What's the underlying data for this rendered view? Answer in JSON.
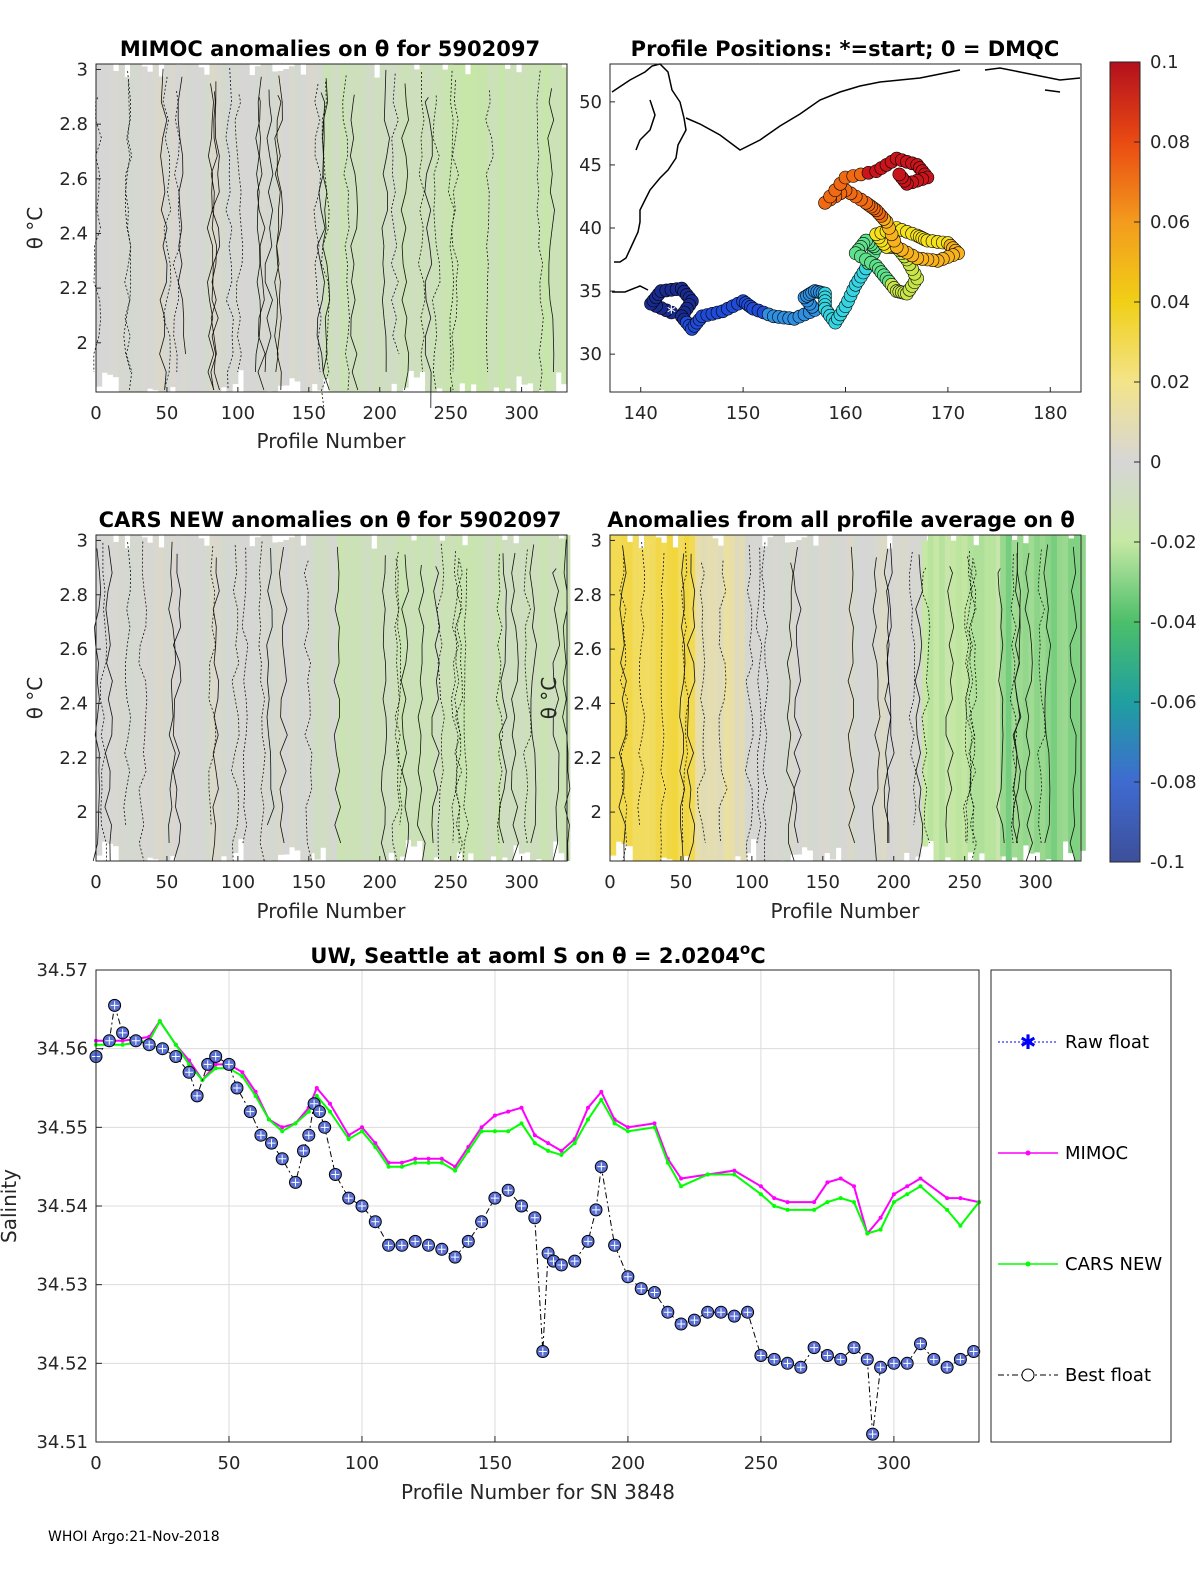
{
  "footer": "WHOI Argo:21-Nov-2018",
  "colors": {
    "raw": "#0000ff",
    "mimoc": "#ff00ff",
    "cars": "#00ff00",
    "best": "#000000",
    "marker_fill": "#5a6fd6",
    "land": "#000000"
  },
  "chart_data": [
    {
      "id": "mimoc",
      "type": "heatmap",
      "title": "MIMOC anomalies on θ  for 5902097",
      "xlabel": "Profile Number",
      "ylabel": "θ °C",
      "xlim": [
        0,
        332
      ],
      "ylim": [
        1.82,
        3.02
      ],
      "xticks": [
        "0",
        "50",
        "100",
        "150",
        "200",
        "250",
        "300"
      ],
      "yticks": [
        "2",
        "2.2",
        "2.4",
        "2.6",
        "2.8",
        "3"
      ],
      "segments": [
        {
          "from": 0,
          "to": 160,
          "value": 0.0
        },
        {
          "from": 160,
          "to": 240,
          "value": -0.01
        },
        {
          "from": 240,
          "to": 332,
          "value": -0.015
        }
      ]
    },
    {
      "id": "positions",
      "type": "scatter",
      "title": "Profile Positions: *=start; 0 = DMQC",
      "xlim": [
        137,
        183
      ],
      "ylim": [
        27,
        53
      ],
      "xticks": [
        "140",
        "150",
        "160",
        "170",
        "180"
      ],
      "yticks": [
        "30",
        "35",
        "40",
        "45",
        "50"
      ],
      "track": [
        [
          143,
          33.3
        ],
        [
          141,
          34
        ],
        [
          142,
          35
        ],
        [
          144,
          35.2
        ],
        [
          145,
          34.2
        ],
        [
          144,
          33
        ],
        [
          145,
          32
        ],
        [
          146,
          33
        ],
        [
          148,
          33.4
        ],
        [
          150,
          34.2
        ],
        [
          151,
          33.6
        ],
        [
          153,
          33
        ],
        [
          155,
          32.8
        ],
        [
          157,
          33.5
        ],
        [
          156,
          34.5
        ],
        [
          157,
          35
        ],
        [
          158,
          34.8
        ],
        [
          158,
          33.6
        ],
        [
          159,
          32.5
        ],
        [
          160,
          33.8
        ],
        [
          161,
          35.5
        ],
        [
          162,
          36.8
        ],
        [
          163,
          38.4
        ],
        [
          162,
          39
        ],
        [
          161,
          38
        ],
        [
          163,
          37
        ],
        [
          164,
          36
        ],
        [
          165,
          35
        ],
        [
          166,
          34.8
        ],
        [
          167,
          36
        ],
        [
          166,
          37.5
        ],
        [
          165,
          38.5
        ],
        [
          164,
          38.5
        ],
        [
          163,
          39.5
        ],
        [
          165,
          40
        ],
        [
          167,
          39.4
        ],
        [
          168,
          39
        ],
        [
          170,
          38.8
        ],
        [
          171,
          38
        ],
        [
          169,
          37.4
        ],
        [
          167,
          37.6
        ],
        [
          165,
          38.5
        ],
        [
          164,
          40.5
        ],
        [
          163,
          41.4
        ],
        [
          162,
          42
        ],
        [
          160,
          43
        ],
        [
          158,
          42
        ],
        [
          160,
          44
        ],
        [
          163,
          44.5
        ],
        [
          165,
          45.5
        ],
        [
          167,
          45
        ],
        [
          168,
          44
        ],
        [
          166,
          43.5
        ],
        [
          165,
          44.5
        ]
      ]
    },
    {
      "id": "cars",
      "type": "heatmap",
      "title": "CARS NEW anomalies on θ for 5902097",
      "xlabel": "Profile Number",
      "ylabel": "θ °C",
      "xlim": [
        0,
        332
      ],
      "ylim": [
        1.82,
        3.02
      ],
      "xticks": [
        "0",
        "50",
        "100",
        "150",
        "200",
        "250",
        "300"
      ],
      "yticks": [
        "2",
        "2.2",
        "2.4",
        "2.6",
        "2.8",
        "3"
      ],
      "segments": [
        {
          "from": 0,
          "to": 150,
          "value": 0.0
        },
        {
          "from": 150,
          "to": 170,
          "value": -0.005
        },
        {
          "from": 170,
          "to": 332,
          "value": -0.012
        }
      ]
    },
    {
      "id": "avg",
      "type": "heatmap",
      "title": "Anomalies from all profile average on θ",
      "xlabel": "Profile Number",
      "ylabel": "θ °C",
      "xlim": [
        0,
        332
      ],
      "ylim": [
        1.82,
        3.02
      ],
      "xticks": [
        "0",
        "50",
        "100",
        "150",
        "200",
        "250",
        "300"
      ],
      "yticks": [
        "2",
        "2.2",
        "2.4",
        "2.6",
        "2.8",
        "3"
      ],
      "segments": [
        {
          "from": 0,
          "to": 60,
          "value": 0.03
        },
        {
          "from": 60,
          "to": 95,
          "value": 0.01
        },
        {
          "from": 95,
          "to": 220,
          "value": 0.0
        },
        {
          "from": 220,
          "to": 275,
          "value": -0.02
        },
        {
          "from": 275,
          "to": 332,
          "value": -0.03
        }
      ]
    },
    {
      "id": "colorbar",
      "type": "heatmap",
      "range": [
        -0.1,
        0.1
      ],
      "ticks": [
        "0.1",
        "0.08",
        "0.06",
        "0.04",
        "0.02",
        "0",
        "-0.02",
        "-0.04",
        "-0.06",
        "-0.08",
        "-0.1"
      ]
    },
    {
      "id": "salinity",
      "type": "line",
      "title": "UW, Seattle at aoml S on θ = 2.0204",
      "title_sup": "o",
      "title_end": "C",
      "xlabel": "Profile Number for SN 3848",
      "ylabel": "Salinity",
      "xlim": [
        0,
        332
      ],
      "ylim": [
        34.51,
        34.57
      ],
      "xticks": [
        "0",
        "50",
        "100",
        "150",
        "200",
        "250",
        "300"
      ],
      "yticks": [
        "34.51",
        "34.52",
        "34.53",
        "34.54",
        "34.55",
        "34.56",
        "34.57"
      ],
      "legend": [
        "Raw float",
        "MIMOC",
        "CARS NEW",
        "Best float"
      ],
      "series": [
        {
          "name": "Best float",
          "x": [
            0,
            5,
            7,
            10,
            15,
            20,
            25,
            30,
            35,
            38,
            42,
            45,
            50,
            53,
            58,
            62,
            66,
            70,
            75,
            78,
            80,
            82,
            84,
            86,
            90,
            95,
            100,
            105,
            110,
            115,
            120,
            125,
            130,
            135,
            140,
            145,
            150,
            155,
            160,
            165,
            168,
            170,
            172,
            175,
            180,
            185,
            188,
            190,
            195,
            200,
            205,
            210,
            215,
            220,
            225,
            230,
            235,
            240,
            245,
            250,
            255,
            260,
            265,
            270,
            275,
            280,
            285,
            290,
            292,
            295,
            300,
            305,
            310,
            315,
            320,
            325,
            330
          ],
          "y": [
            34.559,
            34.561,
            34.5655,
            34.562,
            34.561,
            34.5605,
            34.56,
            34.559,
            34.557,
            34.554,
            34.558,
            34.559,
            34.558,
            34.555,
            34.552,
            34.549,
            34.548,
            34.546,
            34.543,
            34.547,
            34.549,
            34.553,
            34.552,
            34.55,
            34.544,
            34.541,
            34.54,
            34.538,
            34.535,
            34.535,
            34.5355,
            34.535,
            34.5345,
            34.5335,
            34.5355,
            34.538,
            34.541,
            34.542,
            34.54,
            34.5385,
            34.5215,
            34.534,
            34.533,
            34.5325,
            34.533,
            34.5355,
            34.5395,
            34.545,
            34.535,
            34.531,
            34.5295,
            34.529,
            34.5265,
            34.525,
            34.5255,
            34.5265,
            34.5265,
            34.526,
            34.5265,
            34.521,
            34.5205,
            34.52,
            34.5195,
            34.522,
            34.521,
            34.5205,
            34.522,
            34.5205,
            34.511,
            34.5195,
            34.52,
            34.52,
            34.5225,
            34.5205,
            34.5195,
            34.5205,
            34.5215
          ]
        },
        {
          "name": "MIMOC",
          "x": [
            0,
            10,
            20,
            24,
            30,
            35,
            40,
            45,
            50,
            55,
            60,
            65,
            70,
            75,
            80,
            83,
            88,
            95,
            100,
            105,
            110,
            115,
            120,
            125,
            130,
            135,
            140,
            145,
            150,
            155,
            160,
            165,
            170,
            175,
            180,
            185,
            190,
            195,
            200,
            210,
            215,
            220,
            230,
            240,
            250,
            255,
            260,
            270,
            275,
            280,
            285,
            290,
            295,
            300,
            305,
            310,
            320,
            325,
            332
          ],
          "y": [
            34.561,
            34.561,
            34.5615,
            34.5635,
            34.5605,
            34.5585,
            34.556,
            34.558,
            34.558,
            34.557,
            34.5545,
            34.551,
            34.55,
            34.5505,
            34.5525,
            34.555,
            34.553,
            34.549,
            34.55,
            34.548,
            34.5455,
            34.5455,
            34.546,
            34.546,
            34.546,
            34.545,
            34.5475,
            34.55,
            34.5515,
            34.552,
            34.5525,
            34.549,
            34.548,
            34.547,
            34.5485,
            34.5525,
            34.5545,
            34.551,
            34.55,
            34.5505,
            34.546,
            34.5435,
            34.544,
            34.5445,
            34.5425,
            34.541,
            34.5405,
            34.5405,
            34.543,
            34.5435,
            34.5425,
            34.5365,
            34.5385,
            34.5415,
            34.5425,
            34.5435,
            34.541,
            34.541,
            34.5405
          ]
        },
        {
          "name": "CARS NEW",
          "x": [
            0,
            10,
            20,
            24,
            30,
            35,
            40,
            45,
            50,
            55,
            60,
            65,
            70,
            75,
            80,
            83,
            88,
            95,
            100,
            105,
            110,
            115,
            120,
            125,
            130,
            135,
            140,
            145,
            150,
            155,
            160,
            165,
            170,
            175,
            180,
            185,
            190,
            195,
            200,
            210,
            215,
            220,
            230,
            240,
            250,
            255,
            260,
            270,
            275,
            280,
            285,
            290,
            295,
            300,
            305,
            310,
            320,
            325,
            332
          ],
          "y": [
            34.5605,
            34.5605,
            34.561,
            34.5635,
            34.5605,
            34.558,
            34.556,
            34.5575,
            34.5575,
            34.5565,
            34.554,
            34.551,
            34.5495,
            34.5505,
            34.552,
            34.554,
            34.552,
            34.5485,
            34.5495,
            34.5475,
            34.545,
            34.545,
            34.5455,
            34.5455,
            34.5455,
            34.5445,
            34.547,
            34.5495,
            34.5495,
            34.5495,
            34.5505,
            34.548,
            34.547,
            34.5465,
            34.548,
            34.551,
            34.5535,
            34.5505,
            34.5495,
            34.55,
            34.5455,
            34.5425,
            34.544,
            34.544,
            34.5415,
            34.54,
            34.5395,
            34.5395,
            34.5405,
            34.541,
            34.5405,
            34.5365,
            34.537,
            34.5405,
            34.5415,
            34.5425,
            34.5395,
            34.5375,
            34.5405
          ]
        }
      ]
    }
  ]
}
